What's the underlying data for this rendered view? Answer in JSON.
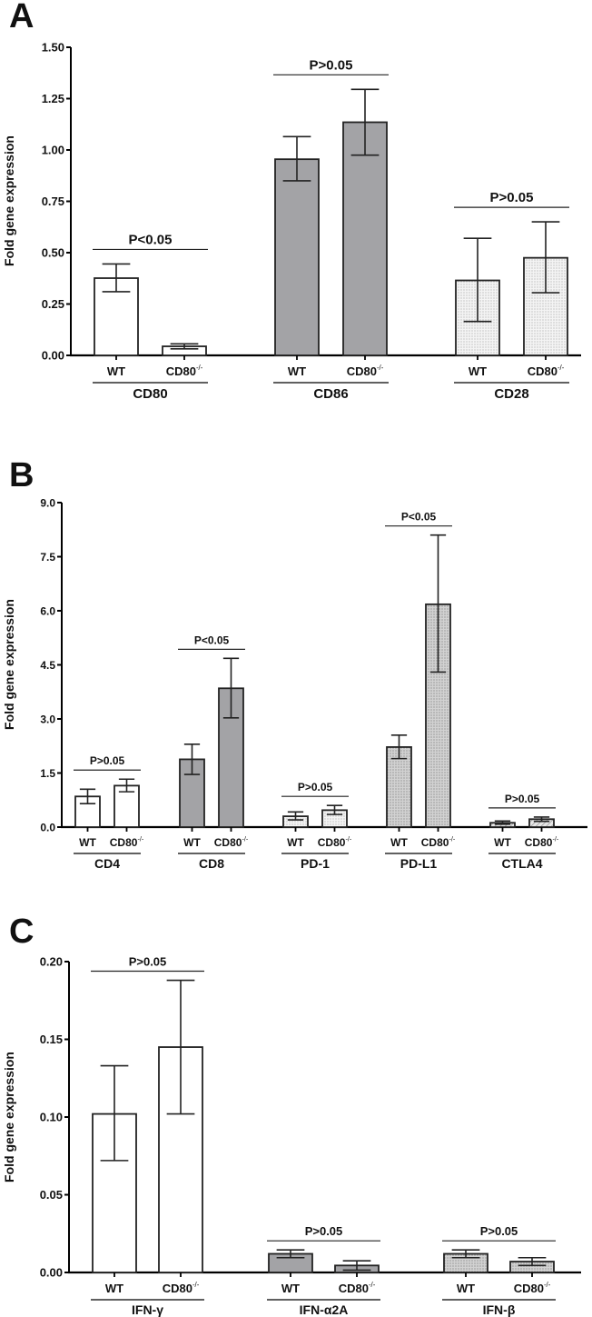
{
  "chart_data": [
    {
      "panel": "A",
      "type": "bar",
      "ylabel": "Fold gene expression",
      "ylim": [
        0,
        1.5
      ],
      "yticks": [
        "0.00",
        "0.25",
        "0.50",
        "0.75",
        "1.00",
        "1.25",
        "1.50"
      ],
      "groups": [
        {
          "gene": "CD80",
          "pattern": "white",
          "p": "P<0.05",
          "bars": [
            {
              "label": "WT",
              "value": 0.376,
              "err": [
                0.31,
                0.445
              ]
            },
            {
              "label": "CD80-/-",
              "value": 0.044,
              "err": [
                0.032,
                0.056
              ]
            }
          ]
        },
        {
          "gene": "CD86",
          "pattern": "gray",
          "p": "P>0.05",
          "bars": [
            {
              "label": "WT",
              "value": 0.955,
              "err": [
                0.85,
                1.065
              ]
            },
            {
              "label": "CD80-/-",
              "value": 1.135,
              "err": [
                0.975,
                1.295
              ]
            }
          ]
        },
        {
          "gene": "CD28",
          "pattern": "dots",
          "p": "P>0.05",
          "bars": [
            {
              "label": "WT",
              "value": 0.365,
              "err": [
                0.165,
                0.57
              ]
            },
            {
              "label": "CD80-/-",
              "value": 0.475,
              "err": [
                0.305,
                0.65
              ]
            }
          ]
        }
      ]
    },
    {
      "panel": "B",
      "type": "bar",
      "ylabel": "Fold gene expression",
      "ylim": [
        0,
        9.0
      ],
      "yticks": [
        "0.0",
        "1.5",
        "3.0",
        "4.5",
        "6.0",
        "7.5",
        "9.0"
      ],
      "groups": [
        {
          "gene": "CD4",
          "pattern": "white",
          "p": "P>0.05",
          "bars": [
            {
              "label": "WT",
              "value": 0.85,
              "err": [
                0.65,
                1.05
              ]
            },
            {
              "label": "CD80-/-",
              "value": 1.15,
              "err": [
                0.98,
                1.33
              ]
            }
          ]
        },
        {
          "gene": "CD8",
          "pattern": "gray",
          "p": "P<0.05",
          "bars": [
            {
              "label": "WT",
              "value": 1.88,
              "err": [
                1.46,
                2.3
              ]
            },
            {
              "label": "CD80-/-",
              "value": 3.85,
              "err": [
                3.03,
                4.68
              ]
            }
          ]
        },
        {
          "gene": "PD-1",
          "pattern": "dots",
          "p": "P>0.05",
          "bars": [
            {
              "label": "WT",
              "value": 0.3,
              "err": [
                0.2,
                0.42
              ]
            },
            {
              "label": "CD80-/-",
              "value": 0.47,
              "err": [
                0.35,
                0.6
              ]
            }
          ]
        },
        {
          "gene": "PD-L1",
          "pattern": "darkdots",
          "p": "P<0.05",
          "bars": [
            {
              "label": "WT",
              "value": 2.22,
              "err": [
                1.9,
                2.55
              ]
            },
            {
              "label": "CD80-/-",
              "value": 6.18,
              "err": [
                4.3,
                8.1
              ]
            }
          ]
        },
        {
          "gene": "CTLA4",
          "pattern": "hatch",
          "p": "P>0.05",
          "bars": [
            {
              "label": "WT",
              "value": 0.12,
              "err": [
                0.08,
                0.17
              ]
            },
            {
              "label": "CD80-/-",
              "value": 0.22,
              "err": [
                0.16,
                0.28
              ]
            }
          ]
        }
      ]
    },
    {
      "panel": "C",
      "type": "bar",
      "ylabel": "Fold gene expression",
      "ylim": [
        0,
        0.2
      ],
      "yticks": [
        "0.00",
        "0.05",
        "0.10",
        "0.15",
        "0.20"
      ],
      "groups": [
        {
          "gene": "IFN-γ",
          "pattern": "white",
          "p": "P>0.05",
          "bars": [
            {
              "label": "WT",
              "value": 0.102,
              "err": [
                0.072,
                0.133
              ]
            },
            {
              "label": "CD80-/-",
              "value": 0.145,
              "err": [
                0.102,
                0.188
              ]
            }
          ]
        },
        {
          "gene": "IFN-α2A",
          "pattern": "gray",
          "p": "P>0.05",
          "bars": [
            {
              "label": "WT",
              "value": 0.012,
              "err": [
                0.0095,
                0.0145
              ]
            },
            {
              "label": "CD80-/-",
              "value": 0.0045,
              "err": [
                0.0015,
                0.0075
              ]
            }
          ]
        },
        {
          "gene": "IFN-β",
          "pattern": "darkdots",
          "p": "P>0.05",
          "bars": [
            {
              "label": "WT",
              "value": 0.012,
              "err": [
                0.0095,
                0.0145
              ]
            },
            {
              "label": "CD80-/-",
              "value": 0.007,
              "err": [
                0.0045,
                0.0095
              ]
            }
          ]
        }
      ]
    }
  ],
  "labels": {
    "A": "A",
    "B": "B",
    "C": "C",
    "wt": "WT",
    "ko": "CD80",
    "ko_sup": "-/-"
  }
}
